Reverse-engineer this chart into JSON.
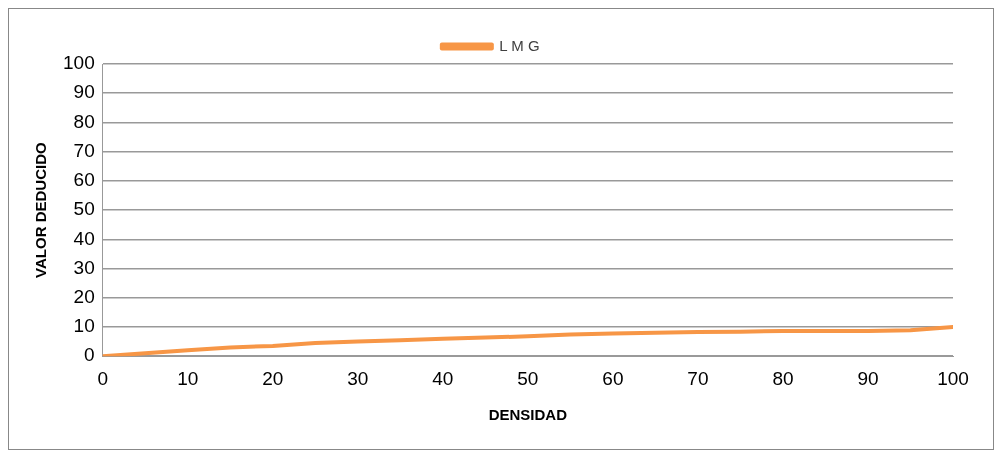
{
  "chart_data": {
    "type": "line",
    "xlabel": "DENSIDAD",
    "ylabel": "VALOR DEDUCIDO",
    "x": [
      0,
      5,
      10,
      15,
      20,
      25,
      30,
      35,
      40,
      45,
      50,
      55,
      60,
      65,
      70,
      75,
      80,
      85,
      90,
      95,
      100
    ],
    "series": [
      {
        "name": "L M G",
        "color": "#f79646",
        "values": [
          0,
          1,
          2,
          3,
          3.5,
          4.5,
          5,
          5.5,
          6,
          6.4,
          6.8,
          7.4,
          7.8,
          8,
          8.3,
          8.4,
          8.6,
          8.6,
          8.6,
          8.9,
          10
        ]
      }
    ],
    "xlim": [
      0,
      100
    ],
    "xticks": [
      0,
      10,
      20,
      30,
      40,
      50,
      60,
      70,
      80,
      90,
      100
    ],
    "ylim": [
      0,
      100
    ],
    "yticks": [
      0,
      10,
      20,
      30,
      40,
      50,
      60,
      70,
      80,
      90,
      100
    ],
    "grid": "y",
    "legend": "top",
    "marker": "none",
    "line_style": "solid"
  }
}
